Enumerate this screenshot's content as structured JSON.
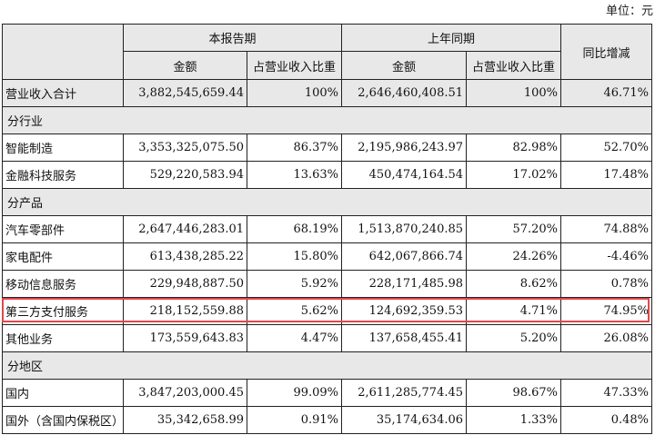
{
  "unit_label": "单位：元",
  "header": {
    "current_period": "本报告期",
    "prior_period": "上年同期",
    "yoy_change": "同比增减",
    "amount": "金额",
    "share_of_revenue": "占营业收入比重"
  },
  "total": {
    "label": "营业收入合计",
    "cur_amount": "3,882,545,659.44",
    "cur_share": "100%",
    "prev_amount": "2,646,460,408.51",
    "prev_share": "100%",
    "change": "46.71%"
  },
  "sections": [
    {
      "title": "分行业",
      "rows": [
        {
          "label": "智能制造",
          "cur_amount": "3,353,325,075.50",
          "cur_share": "86.37%",
          "prev_amount": "2,195,986,243.97",
          "prev_share": "82.98%",
          "change": "52.70%"
        },
        {
          "label": "金融科技服务",
          "cur_amount": "529,220,583.94",
          "cur_share": "13.63%",
          "prev_amount": "450,474,164.54",
          "prev_share": "17.02%",
          "change": "17.48%"
        }
      ]
    },
    {
      "title": "分产品",
      "rows": [
        {
          "label": "汽车零部件",
          "cur_amount": "2,647,446,283.01",
          "cur_share": "68.19%",
          "prev_amount": "1,513,870,240.85",
          "prev_share": "57.20%",
          "change": "74.88%"
        },
        {
          "label": "家电配件",
          "cur_amount": "613,438,285.22",
          "cur_share": "15.80%",
          "prev_amount": "642,067,866.74",
          "prev_share": "24.26%",
          "change": "-4.46%"
        },
        {
          "label": "移动信息服务",
          "cur_amount": "229,948,887.50",
          "cur_share": "5.92%",
          "prev_amount": "228,171,485.98",
          "prev_share": "8.62%",
          "change": "0.78%"
        },
        {
          "label": "第三方支付服务",
          "cur_amount": "218,152,559.88",
          "cur_share": "5.62%",
          "prev_amount": "124,692,359.53",
          "prev_share": "4.71%",
          "change": "74.95%"
        },
        {
          "label": "其他业务",
          "cur_amount": "173,559,643.83",
          "cur_share": "4.47%",
          "prev_amount": "137,658,455.41",
          "prev_share": "5.20%",
          "change": "26.08%"
        }
      ]
    },
    {
      "title": "分地区",
      "rows": [
        {
          "label": "国内",
          "cur_amount": "3,847,203,000.45",
          "cur_share": "99.09%",
          "prev_amount": "2,611,285,774.45",
          "prev_share": "98.67%",
          "change": "47.33%"
        },
        {
          "label": "国外（含国内保税区）",
          "cur_amount": "35,342,658.99",
          "cur_share": "0.91%",
          "prev_amount": "35,174,634.06",
          "prev_share": "1.33%",
          "change": "0.48%"
        }
      ]
    }
  ],
  "highlight": {
    "row_label": "第三方支付服务",
    "color": "#e0474c"
  }
}
